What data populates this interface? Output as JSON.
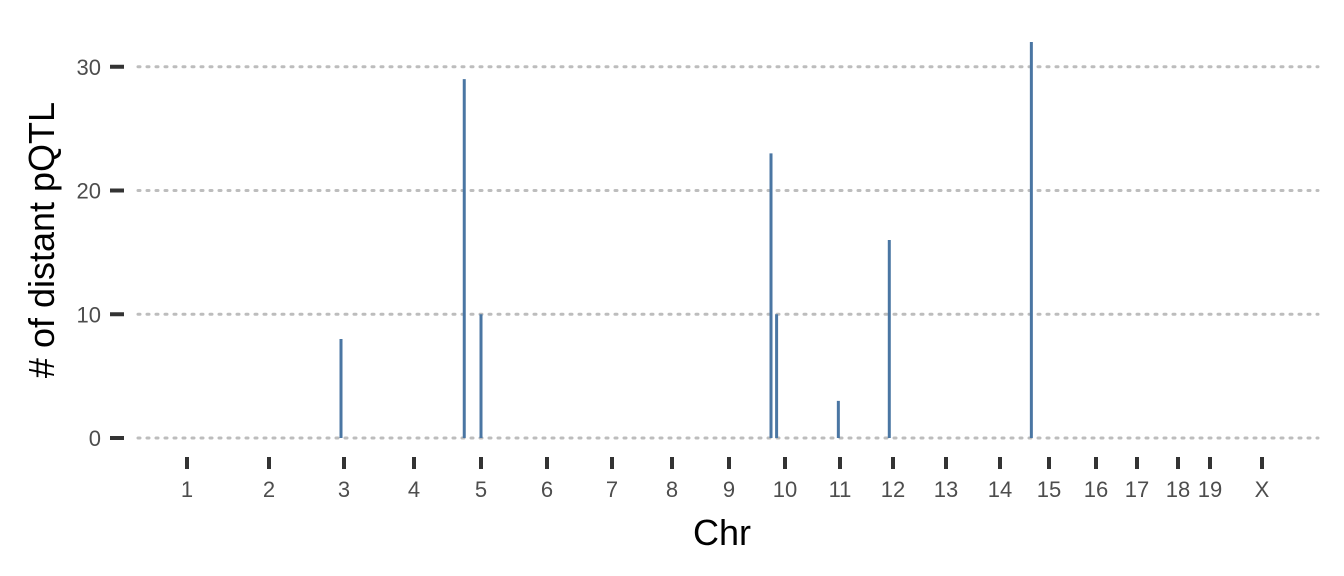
{
  "chart_data": {
    "type": "bar",
    "title": "",
    "xlabel": "Chr",
    "ylabel": "# of distant pQTL",
    "ylim": [
      0,
      32
    ],
    "yticks": [
      0,
      10,
      20,
      30
    ],
    "grid": "horizontal dotted",
    "legend": "none",
    "bar_color": "#4a76a3",
    "chromosome_ticks": [
      "1",
      "2",
      "3",
      "4",
      "5",
      "6",
      "7",
      "8",
      "9",
      "10",
      "11",
      "12",
      "13",
      "14",
      "15",
      "16",
      "17",
      "18",
      "19",
      "X"
    ],
    "x_axis": "chromosome position (genome-wide)",
    "points": [
      {
        "chr": "2",
        "pos": 0.96,
        "value": 8
      },
      {
        "chr": "4",
        "pos": 0.75,
        "value": 29
      },
      {
        "chr": "5",
        "pos": 0.0,
        "value": 10
      },
      {
        "chr": "9",
        "pos": 0.75,
        "value": 23
      },
      {
        "chr": "9",
        "pos": 0.85,
        "value": 10
      },
      {
        "chr": "10",
        "pos": 0.97,
        "value": 3
      },
      {
        "chr": "11",
        "pos": 0.93,
        "value": 16
      },
      {
        "chr": "14",
        "pos": 0.64,
        "value": 32
      }
    ]
  }
}
